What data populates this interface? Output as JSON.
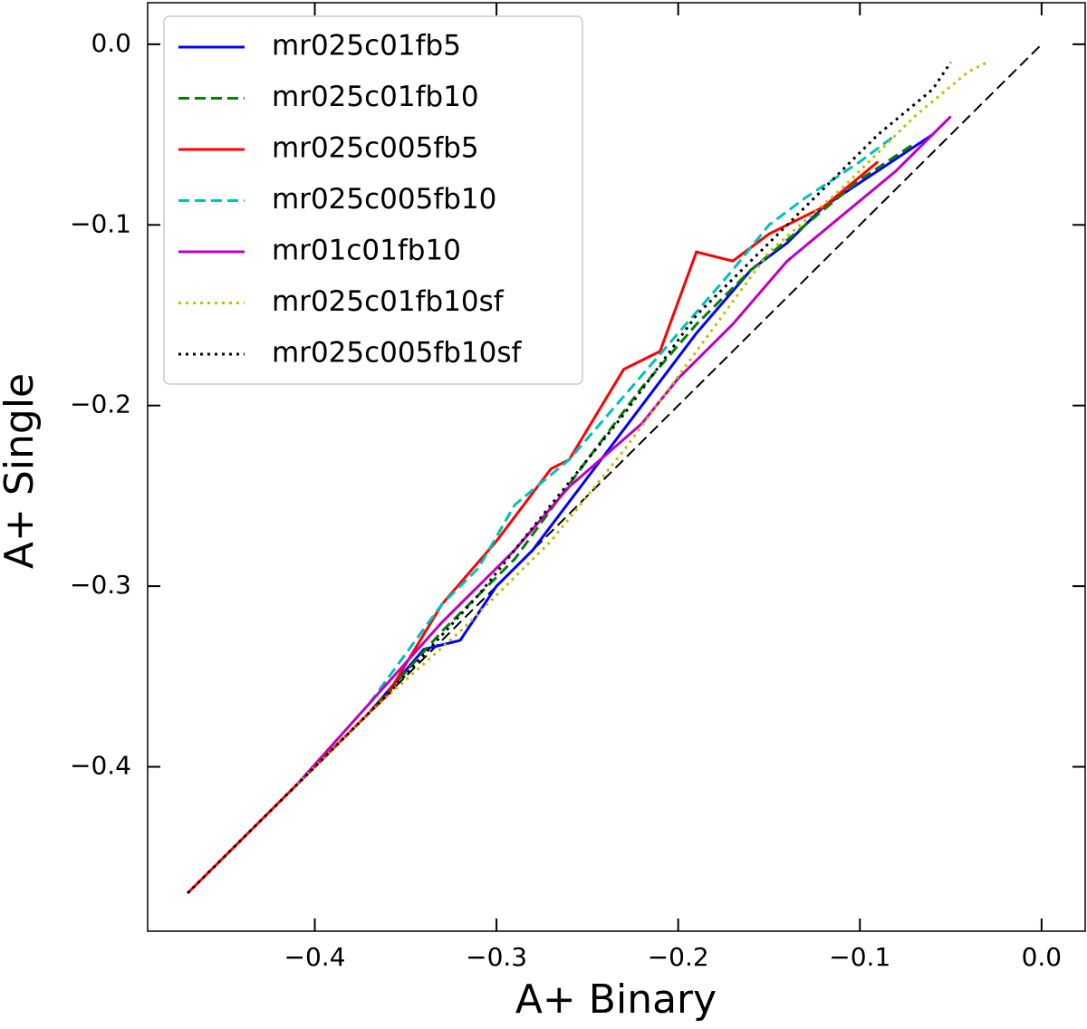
{
  "chart_data": {
    "type": "line",
    "xlabel": "A+ Binary",
    "ylabel": "A+ Single",
    "xlim": [
      -0.492,
      0.024
    ],
    "ylim": [
      -0.491,
      0.023
    ],
    "xticks": [
      {
        "value": -0.4,
        "label": "−0.4"
      },
      {
        "value": -0.3,
        "label": "−0.3"
      },
      {
        "value": -0.2,
        "label": "−0.2"
      },
      {
        "value": -0.1,
        "label": "−0.1"
      },
      {
        "value": 0.0,
        "label": "0.0"
      }
    ],
    "yticks": [
      {
        "value": -0.4,
        "label": "−0.4"
      },
      {
        "value": -0.3,
        "label": "−0.3"
      },
      {
        "value": -0.2,
        "label": "−0.2"
      },
      {
        "value": -0.1,
        "label": "−0.1"
      },
      {
        "value": 0.0,
        "label": "0.0"
      }
    ],
    "grid": false,
    "legend": "upper left",
    "reference_line": {
      "color": "#000000",
      "linestyle": "dashed",
      "x": [
        -0.47,
        0.0
      ],
      "values": [
        -0.47,
        0.0
      ]
    },
    "series": [
      {
        "name": "mr025c01fb5",
        "color": "#0000ff",
        "linestyle": "solid",
        "x": [
          -0.37,
          -0.34,
          -0.32,
          -0.3,
          -0.28,
          -0.25,
          -0.22,
          -0.19,
          -0.16,
          -0.14,
          -0.12,
          -0.09,
          -0.06
        ],
        "values": [
          -0.37,
          -0.335,
          -0.33,
          -0.3,
          -0.28,
          -0.24,
          -0.2,
          -0.16,
          -0.125,
          -0.11,
          -0.09,
          -0.07,
          -0.05
        ]
      },
      {
        "name": "mr025c01fb10",
        "color": "#008000",
        "linestyle": "dashed",
        "x": [
          -0.41,
          -0.37,
          -0.33,
          -0.29,
          -0.25,
          -0.22,
          -0.19,
          -0.16,
          -0.13,
          -0.1,
          -0.07
        ],
        "values": [
          -0.41,
          -0.37,
          -0.325,
          -0.285,
          -0.23,
          -0.19,
          -0.155,
          -0.125,
          -0.1,
          -0.075,
          -0.055
        ]
      },
      {
        "name": "mr025c005fb5",
        "color": "#ff0000",
        "linestyle": "solid",
        "x": [
          -0.47,
          -0.4,
          -0.36,
          -0.33,
          -0.3,
          -0.27,
          -0.26,
          -0.23,
          -0.21,
          -0.19,
          -0.17,
          -0.15,
          -0.12,
          -0.09
        ],
        "values": [
          -0.47,
          -0.4,
          -0.36,
          -0.31,
          -0.275,
          -0.235,
          -0.23,
          -0.18,
          -0.17,
          -0.115,
          -0.12,
          -0.105,
          -0.09,
          -0.065
        ]
      },
      {
        "name": "mr025c005fb10",
        "color": "#00bfbf",
        "linestyle": "dashed",
        "x": [
          -0.37,
          -0.33,
          -0.31,
          -0.29,
          -0.26,
          -0.23,
          -0.2,
          -0.17,
          -0.15,
          -0.13,
          -0.1,
          -0.08
        ],
        "values": [
          -0.365,
          -0.31,
          -0.29,
          -0.255,
          -0.23,
          -0.195,
          -0.16,
          -0.125,
          -0.1,
          -0.085,
          -0.065,
          -0.05
        ]
      },
      {
        "name": "mr01c01fb10",
        "color": "#bf00bf",
        "linestyle": "solid",
        "x": [
          -0.41,
          -0.37,
          -0.33,
          -0.29,
          -0.26,
          -0.22,
          -0.2,
          -0.17,
          -0.14,
          -0.11,
          -0.08,
          -0.05
        ],
        "values": [
          -0.41,
          -0.365,
          -0.32,
          -0.28,
          -0.245,
          -0.21,
          -0.185,
          -0.155,
          -0.12,
          -0.095,
          -0.07,
          -0.04
        ]
      },
      {
        "name": "mr025c01fb10sf",
        "color": "#bfbf00",
        "linestyle": "dotted",
        "x": [
          -0.41,
          -0.37,
          -0.32,
          -0.27,
          -0.23,
          -0.19,
          -0.15,
          -0.11,
          -0.07,
          -0.04,
          -0.03
        ],
        "values": [
          -0.41,
          -0.37,
          -0.325,
          -0.275,
          -0.225,
          -0.17,
          -0.115,
          -0.08,
          -0.04,
          -0.015,
          -0.01
        ]
      },
      {
        "name": "mr025c005fb10sf",
        "color": "#000000",
        "linestyle": "dotted",
        "x": [
          -0.47,
          -0.41,
          -0.36,
          -0.31,
          -0.27,
          -0.23,
          -0.19,
          -0.15,
          -0.12,
          -0.09,
          -0.06,
          -0.05
        ],
        "values": [
          -0.47,
          -0.41,
          -0.36,
          -0.305,
          -0.255,
          -0.205,
          -0.15,
          -0.11,
          -0.08,
          -0.05,
          -0.025,
          -0.01
        ]
      }
    ]
  }
}
